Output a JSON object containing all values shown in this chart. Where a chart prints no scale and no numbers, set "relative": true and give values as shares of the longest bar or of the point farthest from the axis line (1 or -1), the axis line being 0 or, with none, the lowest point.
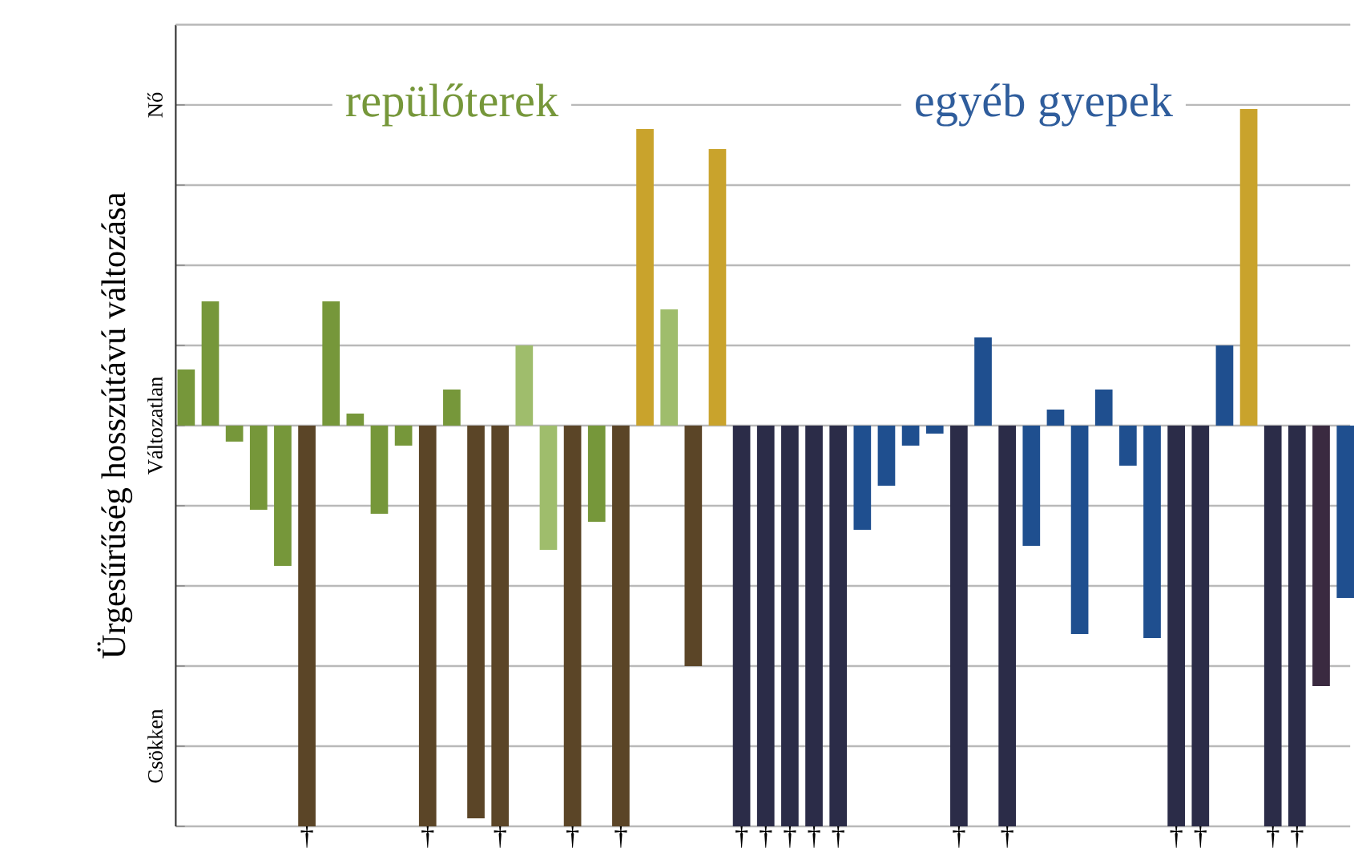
{
  "chart_data": {
    "type": "bar",
    "ylabel": "Ürgesűrűség hosszútávú változása",
    "relative": true,
    "categories": [
      null,
      null,
      null,
      null,
      null,
      "†",
      null,
      null,
      null,
      null,
      "†",
      null,
      null,
      "†",
      null,
      null,
      "†",
      null,
      "†",
      null,
      null,
      null,
      null,
      "†",
      "†",
      "†",
      "†",
      "†",
      null,
      null,
      null,
      null,
      "†",
      null,
      "†",
      null,
      null,
      null,
      null,
      null,
      null,
      "†",
      "†",
      null,
      null,
      "†",
      "†",
      null,
      null
    ],
    "series": [
      {
        "name": "repülőterek",
        "color": "#76973a",
        "values": [
          0.14,
          0.31,
          -0.04,
          -0.21,
          -0.35,
          -1,
          0.31,
          0.03,
          -0.22,
          -0.05,
          -1,
          0.09,
          -0.98,
          -1,
          0.2,
          -0.31,
          -1,
          -0.24,
          -1,
          0.74,
          0.29,
          -0.6,
          0.69,
          null,
          null,
          null,
          null,
          null,
          null,
          null,
          null,
          null,
          null,
          null,
          null,
          null,
          null,
          null,
          null,
          null,
          null,
          null,
          null,
          null,
          null,
          null,
          null,
          null,
          null
        ],
        "colors": [
          "#76973a",
          "#76973a",
          "#76973a",
          "#76973a",
          "#76973a",
          "#5b4527",
          "#76973a",
          "#76973a",
          "#76973a",
          "#76973a",
          "#5b4527",
          "#76973a",
          "#5b4527",
          "#5b4527",
          "#9fbd6c",
          "#9fbd6c",
          "#5b4527",
          "#76973a",
          "#5b4527",
          "#c9a32c",
          "#9fbd6c",
          "#5b4527",
          "#c9a32c",
          null,
          null,
          null,
          null,
          null,
          null,
          null,
          null,
          null,
          null,
          null,
          null,
          null,
          null,
          null,
          null,
          null,
          null,
          null,
          null,
          null,
          null,
          null,
          null,
          null,
          null
        ]
      },
      {
        "name": "egyéb gyepek",
        "color": "#2f5d9c",
        "values": [
          null,
          null,
          null,
          null,
          null,
          null,
          null,
          null,
          null,
          null,
          null,
          null,
          null,
          null,
          null,
          null,
          null,
          null,
          null,
          null,
          null,
          null,
          null,
          -1,
          -1,
          -1,
          -1,
          -1,
          -0.26,
          -0.15,
          -0.05,
          -0.02,
          -1,
          0.22,
          -1,
          -0.3,
          0.04,
          -0.52,
          0.09,
          -0.1,
          -0.53,
          -1,
          -1,
          0.2,
          0.79,
          -1,
          -1,
          -0.65,
          -0.43
        ],
        "colors": [
          null,
          null,
          null,
          null,
          null,
          null,
          null,
          null,
          null,
          null,
          null,
          null,
          null,
          null,
          null,
          null,
          null,
          null,
          null,
          null,
          null,
          null,
          null,
          "#2b2c48",
          "#2b2c48",
          "#2b2c48",
          "#2b2c48",
          "#2b2c48",
          "#1f4f8f",
          "#1f4f8f",
          "#1f4f8f",
          "#1f4f8f",
          "#2b2c48",
          "#1f4f8f",
          "#2b2c48",
          "#1f4f8f",
          "#1f4f8f",
          "#1f4f8f",
          "#1f4f8f",
          "#1f4f8f",
          "#1f4f8f",
          "#2b2c48",
          "#2b2c48",
          "#1f4f8f",
          "#c9a32c",
          "#2b2c48",
          "#2b2c48",
          "#3a2a40",
          "#1f4f8f"
        ]
      }
    ],
    "annotations": [
      "Nő",
      "Változatlan",
      "Csökken"
    ],
    "grid": "y"
  }
}
